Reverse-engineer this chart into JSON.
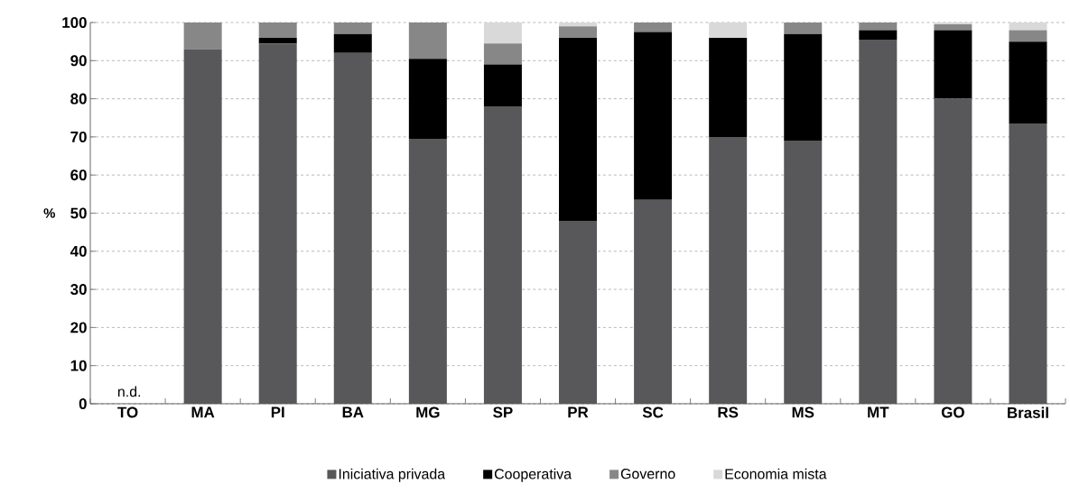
{
  "chart_data": {
    "type": "bar",
    "stacked": true,
    "ylabel": "%",
    "categories": [
      "TO",
      "MA",
      "PI",
      "BA",
      "MG",
      "SP",
      "PR",
      "SC",
      "RS",
      "MS",
      "MT",
      "GO",
      "Brasil"
    ],
    "series": [
      {
        "name": "Iniciativa privada",
        "color": "#58585a",
        "values": [
          null,
          93,
          94.5,
          92,
          69.5,
          78,
          48,
          53.5,
          70,
          69,
          95.5,
          80,
          73.5
        ]
      },
      {
        "name": "Cooperativa",
        "color": "#000000",
        "values": [
          null,
          0,
          1.5,
          5,
          21,
          11,
          48,
          44,
          26,
          28,
          2.5,
          18,
          21.5
        ]
      },
      {
        "name": "Governo",
        "color": "#878787",
        "values": [
          null,
          7,
          4,
          3,
          9.5,
          5.5,
          3,
          2.5,
          0,
          3,
          2,
          1.5,
          3
        ]
      },
      {
        "name": "Economia mista",
        "color": "#d9d9d9",
        "values": [
          null,
          0,
          0,
          0,
          0,
          5.5,
          1,
          0,
          4,
          0,
          0,
          0.5,
          2
        ]
      }
    ],
    "ylim": [
      0,
      100
    ],
    "yticks": [
      0,
      10,
      20,
      30,
      40,
      50,
      60,
      70,
      80,
      90,
      100
    ],
    "grid": "y",
    "legend": "bottom",
    "annotations": [
      "n.d."
    ]
  }
}
